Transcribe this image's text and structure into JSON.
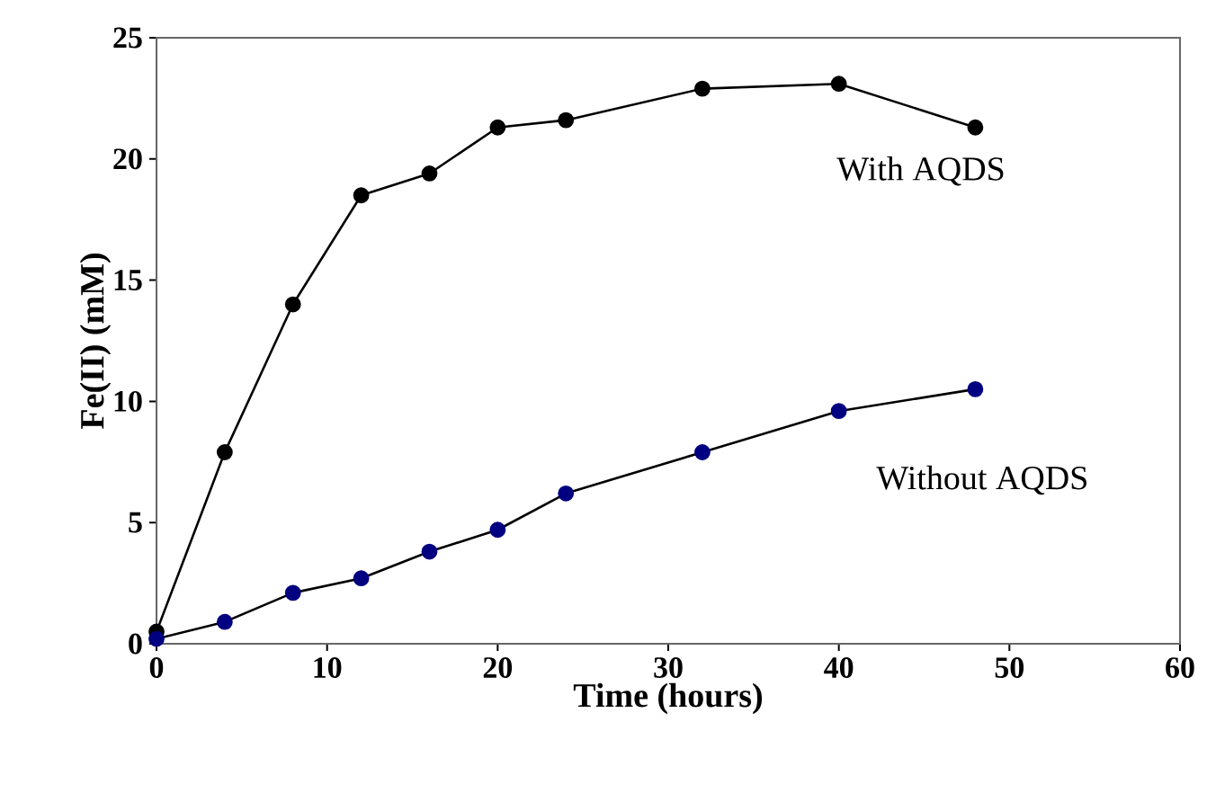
{
  "chart_data": {
    "type": "line",
    "xlabel": "Time (hours)",
    "ylabel": "Fe(II) (mM)",
    "xlim": [
      0,
      60
    ],
    "xticks": [
      0,
      10,
      20,
      30,
      40,
      50,
      60
    ],
    "ylim": [
      0,
      25
    ],
    "yticks": [
      0,
      5,
      10,
      15,
      20,
      25
    ],
    "grid": false,
    "legend": false,
    "marker": "circle",
    "line_style": "solid",
    "series": [
      {
        "name": "With AQDS",
        "color": "#000000",
        "x": [
          0,
          4,
          8,
          12,
          16,
          20,
          24,
          32,
          40,
          48
        ],
        "values": [
          0.5,
          7.9,
          14.0,
          18.5,
          19.4,
          21.3,
          21.6,
          22.9,
          23.1,
          21.3
        ]
      },
      {
        "name": "Without AQDS",
        "color": "#000080",
        "x": [
          0,
          4,
          8,
          12,
          16,
          20,
          24,
          32,
          40,
          48
        ],
        "values": [
          0.2,
          0.9,
          2.1,
          2.7,
          3.8,
          4.7,
          6.2,
          7.9,
          9.6,
          10.5
        ]
      }
    ]
  }
}
